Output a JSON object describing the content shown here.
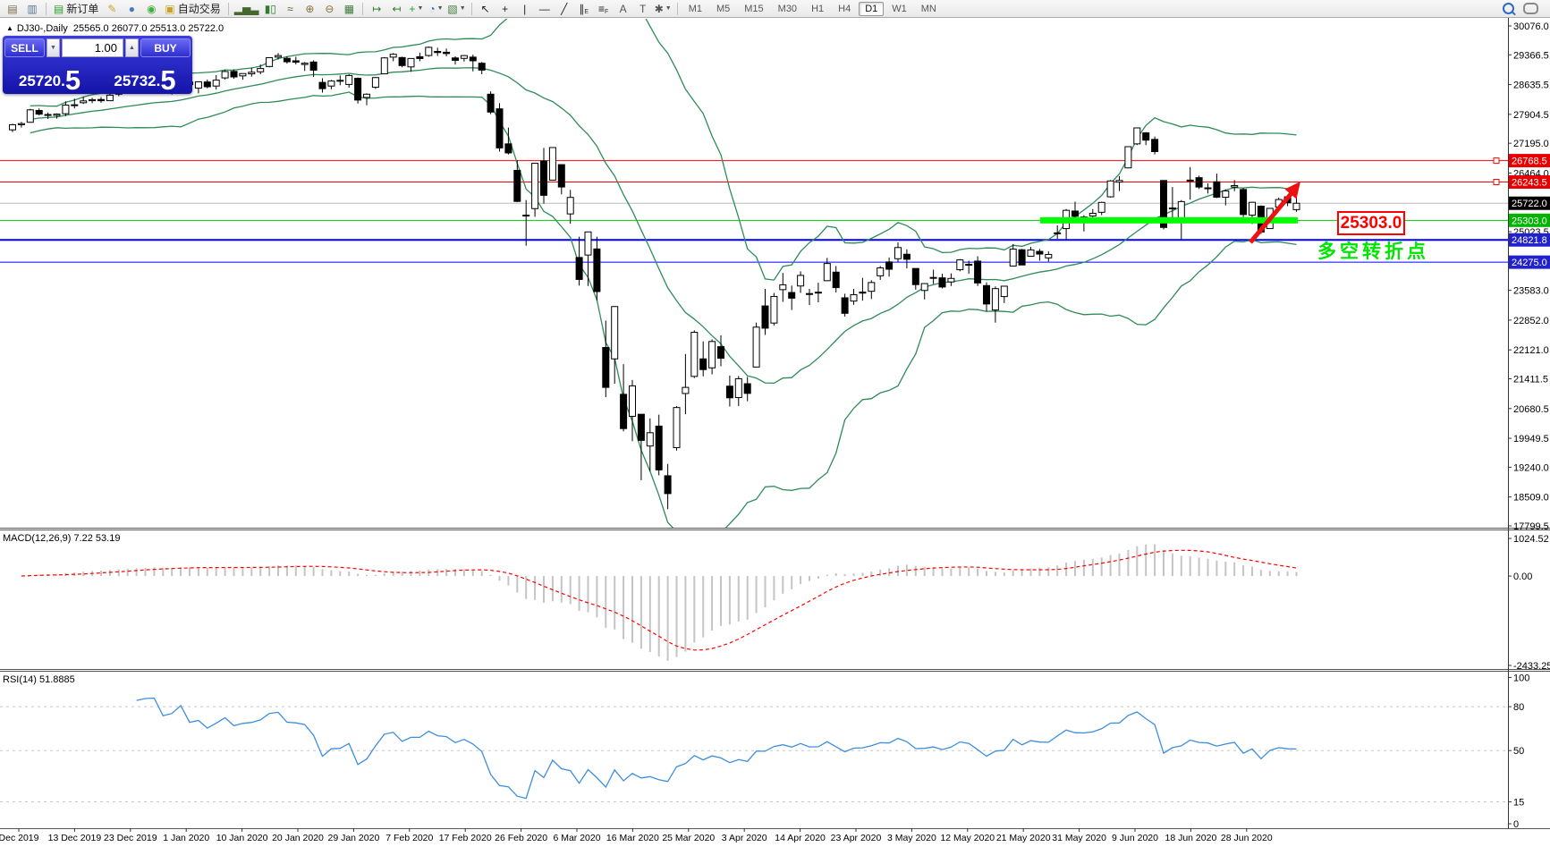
{
  "toolbar": {
    "items": [
      {
        "type": "icon",
        "name": "chart-window-icon",
        "glyph": "▤",
        "color": "#7a6a45"
      },
      {
        "type": "icon",
        "name": "data-window-icon",
        "glyph": "▥",
        "color": "#5c7490"
      },
      {
        "type": "sep"
      },
      {
        "type": "button",
        "name": "new-order-button",
        "glyph": "▤",
        "glyph_color": "#2e9e2e",
        "label": "新订单"
      },
      {
        "type": "icon",
        "name": "pencil-icon",
        "glyph": "✎",
        "color": "#c9a227"
      },
      {
        "type": "icon",
        "name": "community-icon",
        "glyph": "●",
        "color": "#4a78c2"
      },
      {
        "type": "icon",
        "name": "signal-icon",
        "glyph": "◉",
        "color": "#3fae3f"
      },
      {
        "type": "button",
        "name": "algo-trading-button",
        "glyph": "▣",
        "glyph_color": "#c9a227",
        "label": "自动交易"
      },
      {
        "type": "sep"
      },
      {
        "type": "icon",
        "name": "bar-chart-icon",
        "glyph": "▂▅▃",
        "color": "#47682c"
      },
      {
        "type": "icon",
        "name": "candlestick-chart-icon",
        "glyph": "▮▯",
        "color": "#2e7d32"
      },
      {
        "type": "icon",
        "name": "line-chart-icon",
        "glyph": "≈",
        "color": "#47682c"
      },
      {
        "type": "icon",
        "name": "zoom-in-icon",
        "glyph": "⊕",
        "color": "#8a6d3b"
      },
      {
        "type": "icon",
        "name": "zoom-out-icon",
        "glyph": "⊖",
        "color": "#8a6d3b"
      },
      {
        "type": "icon",
        "name": "tile-windows-icon",
        "glyph": "▦",
        "color": "#3f7d3f"
      },
      {
        "type": "sep"
      },
      {
        "type": "icon",
        "name": "auto-scroll-icon",
        "glyph": "↦",
        "color": "#2e7d32"
      },
      {
        "type": "icon",
        "name": "chart-shift-icon",
        "glyph": "↤",
        "color": "#2e7d32"
      },
      {
        "type": "icon",
        "name": "add-indicator-icon",
        "glyph": "+",
        "color": "#2e9e2e",
        "dropdown": true
      },
      {
        "type": "icon",
        "name": "periods-icon",
        "glyph": "◔",
        "color": "#3a6ea5",
        "dropdown": true
      },
      {
        "type": "icon",
        "name": "template-icon",
        "glyph": "▧",
        "color": "#3f7d3f",
        "dropdown": true
      },
      {
        "type": "sep"
      },
      {
        "type": "icon",
        "name": "cursor-icon",
        "glyph": "↖",
        "color": "#222222"
      },
      {
        "type": "icon",
        "name": "crosshair-icon",
        "glyph": "+",
        "color": "#222222"
      },
      {
        "type": "icon",
        "name": "vertical-line-icon",
        "glyph": "|",
        "color": "#222222"
      },
      {
        "type": "icon",
        "name": "horizontal-line-icon",
        "glyph": "—",
        "color": "#222222"
      },
      {
        "type": "icon",
        "name": "trendline-icon",
        "glyph": "╱",
        "color": "#222222"
      },
      {
        "type": "icon",
        "name": "channel-icon",
        "glyph": "∥",
        "sub": "E",
        "color": "#222222"
      },
      {
        "type": "icon",
        "name": "fibonacci-icon",
        "glyph": "≡",
        "sub": "F",
        "color": "#222222"
      },
      {
        "type": "icon",
        "name": "text-icon",
        "glyph": "A",
        "color": "#555555"
      },
      {
        "type": "icon",
        "name": "label-icon",
        "glyph": "T",
        "color": "#555555"
      },
      {
        "type": "icon",
        "name": "shapes-icon",
        "glyph": "✱",
        "color": "#555555",
        "dropdown": true
      },
      {
        "type": "sep"
      }
    ],
    "timeframes": [
      {
        "label": "M1"
      },
      {
        "label": "M5"
      },
      {
        "label": "M15"
      },
      {
        "label": "M30"
      },
      {
        "label": "H1"
      },
      {
        "label": "H4"
      },
      {
        "label": "D1",
        "active": true
      },
      {
        "label": "W1"
      },
      {
        "label": "MN"
      }
    ],
    "right_icons": [
      {
        "name": "search-icon"
      },
      {
        "name": "chat-icon"
      }
    ]
  },
  "symbol_bar": {
    "collapse_glyph": "▲",
    "title": "DJ30-,Daily",
    "ohlc": "25565.0 26077.0 25513.0 25722.0"
  },
  "trade_panel": {
    "sell_label": "SELL",
    "buy_label": "BUY",
    "volume": "1.00",
    "spin_down": "▼",
    "spin_up": "▲",
    "sell_price_int": "25720",
    "sell_price_dec": "5",
    "buy_price_int": "25732",
    "buy_price_dec": "5"
  },
  "chart_data": {
    "type": "candlestick",
    "symbol": "DJ30",
    "timeframe": "Daily",
    "last_ohlc": {
      "open": 25565.0,
      "high": 26077.0,
      "low": 25513.0,
      "close": 25722.0
    },
    "y_axis_ticks": [
      "30076.0",
      "29366.5",
      "28635.5",
      "27904.5",
      "27195.0",
      "26464.0",
      "25023.5",
      "23583.0",
      "22852.0",
      "22121.0",
      "21411.5",
      "20680.5",
      "19949.5",
      "19240.0",
      "18509.0",
      "17799.5"
    ],
    "price_badges": [
      {
        "text": "26768.5",
        "price": 26768.5,
        "bg": "#e80000"
      },
      {
        "text": "26243.5",
        "price": 26243.5,
        "bg": "#e80000"
      },
      {
        "text": "25722.0",
        "price": 25722.0,
        "bg": "#000000"
      },
      {
        "text": "25303.0",
        "price": 25303.0,
        "bg": "#00b400"
      },
      {
        "text": "24821.8",
        "price": 24821.8,
        "bg": "#2222cc"
      },
      {
        "text": "24275.0",
        "price": 24275.0,
        "bg": "#2222cc"
      }
    ],
    "hlines": [
      {
        "price": 26768.5,
        "color": "#ff0000",
        "width": 1,
        "handle": true
      },
      {
        "price": 26243.5,
        "color": "#ff0000",
        "width": 1,
        "handle": true
      },
      {
        "price": 25722.0,
        "color": "#bbbbbb",
        "width": 1,
        "handle": false
      },
      {
        "price": 25303.0,
        "color": "#00cc00",
        "width": 1,
        "handle": false
      },
      {
        "price": 24821.8,
        "color": "#0000ff",
        "width": 2,
        "handle": false
      },
      {
        "price": 24275.0,
        "color": "#0000ff",
        "width": 1,
        "handle": false
      }
    ],
    "thick_support": {
      "price": 25303.0,
      "color": "#00ff00"
    },
    "x_labels": [
      "Dec 2019",
      "13 Dec 2019",
      "23 Dec 2019",
      "1 Jan 2020",
      "10 Jan 2020",
      "20 Jan 2020",
      "29 Jan 2020",
      "7 Feb 2020",
      "17 Feb 2020",
      "26 Feb 2020",
      "6 Mar 2020",
      "16 Mar 2020",
      "25 Mar 2020",
      "3 Apr 2020",
      "14 Apr 2020",
      "23 Apr 2020",
      "3 May 2020",
      "12 May 2020",
      "21 May 2020",
      "31 May 2020",
      "9 Jun 2020",
      "18 Jun 2020",
      "28 Jun 2020"
    ],
    "candles": [
      [
        27525,
        27675,
        27470,
        27650
      ],
      [
        27650,
        27720,
        27580,
        27678
      ],
      [
        27710,
        28040,
        27700,
        28015
      ],
      [
        28000,
        28050,
        27880,
        27910
      ],
      [
        27900,
        27950,
        27790,
        27881
      ],
      [
        27880,
        27930,
        27800,
        27911
      ],
      [
        27920,
        28225,
        27860,
        28132
      ],
      [
        28140,
        28290,
        28050,
        28135
      ],
      [
        28190,
        28340,
        28160,
        28235
      ],
      [
        28240,
        28310,
        28180,
        28267
      ],
      [
        28270,
        28330,
        28190,
        28239
      ],
      [
        28240,
        28440,
        28230,
        28377
      ],
      [
        28400,
        28520,
        28350,
        28455
      ],
      [
        28460,
        28580,
        28430,
        28551
      ],
      [
        28550,
        28580,
        28490,
        28515
      ],
      [
        28520,
        28630,
        28500,
        28621
      ],
      [
        28640,
        28700,
        28550,
        28645
      ],
      [
        28630,
        28650,
        28410,
        28462
      ],
      [
        28460,
        28550,
        28390,
        28538
      ],
      [
        28560,
        28890,
        28550,
        28869
      ],
      [
        28700,
        28720,
        28500,
        28635
      ],
      [
        28550,
        28710,
        28420,
        28704
      ],
      [
        28700,
        28760,
        28545,
        28583
      ],
      [
        28600,
        28870,
        28515,
        28745
      ],
      [
        28800,
        28990,
        28760,
        28957
      ],
      [
        28960,
        29010,
        28780,
        28824
      ],
      [
        28850,
        28910,
        28755,
        28907
      ],
      [
        28900,
        29050,
        28830,
        28939
      ],
      [
        28950,
        29130,
        28890,
        29030
      ],
      [
        29080,
        29300,
        29060,
        29297
      ],
      [
        29310,
        29410,
        29250,
        29348
      ],
      [
        29280,
        29330,
        29150,
        29196
      ],
      [
        29220,
        29320,
        29130,
        29186
      ],
      [
        29130,
        29190,
        28970,
        29160
      ],
      [
        29190,
        29230,
        28820,
        28990
      ],
      [
        28690,
        28790,
        28440,
        28536
      ],
      [
        28600,
        28750,
        28520,
        28723
      ],
      [
        28740,
        28860,
        28620,
        28734
      ],
      [
        28640,
        28890,
        28560,
        28859
      ],
      [
        28790,
        28810,
        28170,
        28256
      ],
      [
        28320,
        28420,
        28130,
        28400
      ],
      [
        28570,
        28820,
        28530,
        28808
      ],
      [
        28900,
        29310,
        28890,
        29291
      ],
      [
        29310,
        29410,
        29210,
        29380
      ],
      [
        29300,
        29320,
        29060,
        29103
      ],
      [
        29070,
        29280,
        28950,
        29277
      ],
      [
        29320,
        29420,
        29210,
        29276
      ],
      [
        29350,
        29570,
        29320,
        29551
      ],
      [
        29450,
        29540,
        29340,
        29423
      ],
      [
        29430,
        29520,
        29330,
        29398
      ],
      [
        29290,
        29330,
        29130,
        29232
      ],
      [
        29280,
        29360,
        29200,
        29348
      ],
      [
        29310,
        29370,
        28960,
        29220
      ],
      [
        29160,
        29190,
        28890,
        28992
      ],
      [
        28400,
        28470,
        27910,
        27961
      ],
      [
        28040,
        28180,
        26990,
        27081
      ],
      [
        27180,
        27580,
        26920,
        26958
      ],
      [
        26530,
        26780,
        25750,
        25767
      ],
      [
        25430,
        25800,
        24680,
        25409
      ],
      [
        25590,
        26710,
        25390,
        26703
      ],
      [
        26760,
        27080,
        25710,
        25917
      ],
      [
        26290,
        27090,
        26280,
        27090
      ],
      [
        26670,
        26670,
        25940,
        26121
      ],
      [
        25460,
        26050,
        25220,
        25865
      ],
      [
        24390,
        24900,
        23700,
        23851
      ],
      [
        24450,
        25020,
        23690,
        25018
      ],
      [
        24600,
        24900,
        23330,
        23553
      ],
      [
        22180,
        22840,
        20960,
        21200
      ],
      [
        21900,
        23190,
        21290,
        23185
      ],
      [
        21030,
        21770,
        20120,
        20188
      ],
      [
        20490,
        21380,
        19880,
        21237
      ],
      [
        20540,
        20540,
        18920,
        19899
      ],
      [
        19760,
        20440,
        19140,
        20087
      ],
      [
        20250,
        20530,
        19040,
        19174
      ],
      [
        19030,
        19320,
        18210,
        18592
      ],
      [
        19720,
        20740,
        19650,
        20705
      ],
      [
        21050,
        22020,
        20540,
        21200
      ],
      [
        21470,
        22600,
        21430,
        22552
      ],
      [
        21900,
        22330,
        21470,
        21637
      ],
      [
        21680,
        22380,
        21520,
        22327
      ],
      [
        22200,
        22480,
        21720,
        21917
      ],
      [
        21230,
        21490,
        20730,
        20944
      ],
      [
        20950,
        21480,
        20740,
        21413
      ],
      [
        21290,
        21460,
        20860,
        21053
      ],
      [
        21700,
        22790,
        21690,
        22680
      ],
      [
        23200,
        23620,
        22490,
        22654
      ],
      [
        22780,
        23520,
        22720,
        23434
      ],
      [
        23600,
        24010,
        23300,
        23719
      ],
      [
        23530,
        23700,
        23100,
        23391
      ],
      [
        23690,
        24050,
        23520,
        23950
      ],
      [
        23500,
        23620,
        23220,
        23504
      ],
      [
        23520,
        23770,
        23290,
        23538
      ],
      [
        23820,
        24380,
        23810,
        24242
      ],
      [
        24030,
        24180,
        23530,
        23650
      ],
      [
        23400,
        23500,
        22940,
        23019
      ],
      [
        23320,
        23620,
        23230,
        23476
      ],
      [
        23540,
        23890,
        23330,
        23515
      ],
      [
        23560,
        23830,
        23370,
        23775
      ],
      [
        23940,
        24180,
        23840,
        24134
      ],
      [
        24280,
        24390,
        23920,
        24102
      ],
      [
        24360,
        24760,
        24280,
        24634
      ],
      [
        24470,
        24590,
        24120,
        24346
      ],
      [
        24120,
        24120,
        23600,
        23724
      ],
      [
        23580,
        23760,
        23360,
        23749
      ],
      [
        23900,
        24090,
        23740,
        23883
      ],
      [
        23890,
        23990,
        23630,
        23665
      ],
      [
        23790,
        24000,
        23690,
        23876
      ],
      [
        24090,
        24350,
        24050,
        24331
      ],
      [
        24200,
        24310,
        23990,
        24222
      ],
      [
        24300,
        24420,
        23690,
        23765
      ],
      [
        23700,
        23780,
        23070,
        23248
      ],
      [
        23100,
        23680,
        22790,
        23625
      ],
      [
        23430,
        23690,
        23270,
        23685
      ],
      [
        24180,
        24720,
        24170,
        24597
      ],
      [
        24580,
        24600,
        24200,
        24206
      ],
      [
        24420,
        24650,
        24410,
        24576
      ],
      [
        24540,
        24600,
        24310,
        24474
      ],
      [
        24380,
        24540,
        24290,
        24465
      ],
      [
        24980,
        25180,
        24850,
        24995
      ],
      [
        25100,
        25580,
        24840,
        25548
      ],
      [
        25530,
        25760,
        25330,
        25401
      ],
      [
        25310,
        25430,
        25030,
        25383
      ],
      [
        25410,
        25580,
        25300,
        25475
      ],
      [
        25500,
        25760,
        25430,
        25743
      ],
      [
        25880,
        26290,
        25860,
        26270
      ],
      [
        26240,
        26390,
        26020,
        26282
      ],
      [
        26590,
        27110,
        26580,
        27111
      ],
      [
        27180,
        27580,
        27150,
        27572
      ],
      [
        27450,
        27470,
        27150,
        27272
      ],
      [
        27290,
        27360,
        26920,
        26990
      ],
      [
        26280,
        26290,
        25080,
        25128
      ],
      [
        25590,
        26120,
        25330,
        25605
      ],
      [
        25280,
        25800,
        24840,
        25763
      ],
      [
        26290,
        26610,
        25810,
        26290
      ],
      [
        26350,
        26400,
        26070,
        26120
      ],
      [
        26100,
        26210,
        25960,
        26080
      ],
      [
        26250,
        26450,
        25850,
        25871
      ],
      [
        25870,
        26060,
        25670,
        26025
      ],
      [
        26120,
        26290,
        26020,
        26156
      ],
      [
        26060,
        26100,
        25380,
        25445
      ],
      [
        25430,
        25760,
        25210,
        25745
      ],
      [
        25650,
        25670,
        24970,
        25016
      ],
      [
        25100,
        25600,
        25090,
        25596
      ],
      [
        25630,
        25860,
        25540,
        25813
      ],
      [
        25880,
        25900,
        25650,
        25735
      ],
      [
        25565,
        26077,
        25513,
        25722
      ]
    ],
    "indicators": {
      "bollinger": {
        "period": 20,
        "deviation": 2,
        "color": "#2E8B57"
      },
      "macd": {
        "label": "MACD(12,26,9) 7.22 53.19",
        "fast": 12,
        "slow": 26,
        "signal_period": 9,
        "main_value": 7.22,
        "signal_value": 53.19,
        "axis_max": "1024.52",
        "axis_zero": "0.00",
        "axis_min": "-2433.25",
        "hist_color": "#c4c4c4",
        "signal_color": "#ff0000"
      },
      "rsi": {
        "label": "RSI(14) 51.8885",
        "period": 14,
        "value": 51.8885,
        "levels": [
          "100",
          "80",
          "50",
          "15",
          "0"
        ],
        "dash_levels": [
          80,
          50,
          15
        ],
        "color": "#3e8ede"
      }
    },
    "annotations": {
      "price_box": {
        "text": "25303.0",
        "color": "#ff0000"
      },
      "note": {
        "text": "多空转折点",
        "color": "#00e400"
      },
      "arrow": {
        "color": "#ee1111"
      }
    }
  }
}
